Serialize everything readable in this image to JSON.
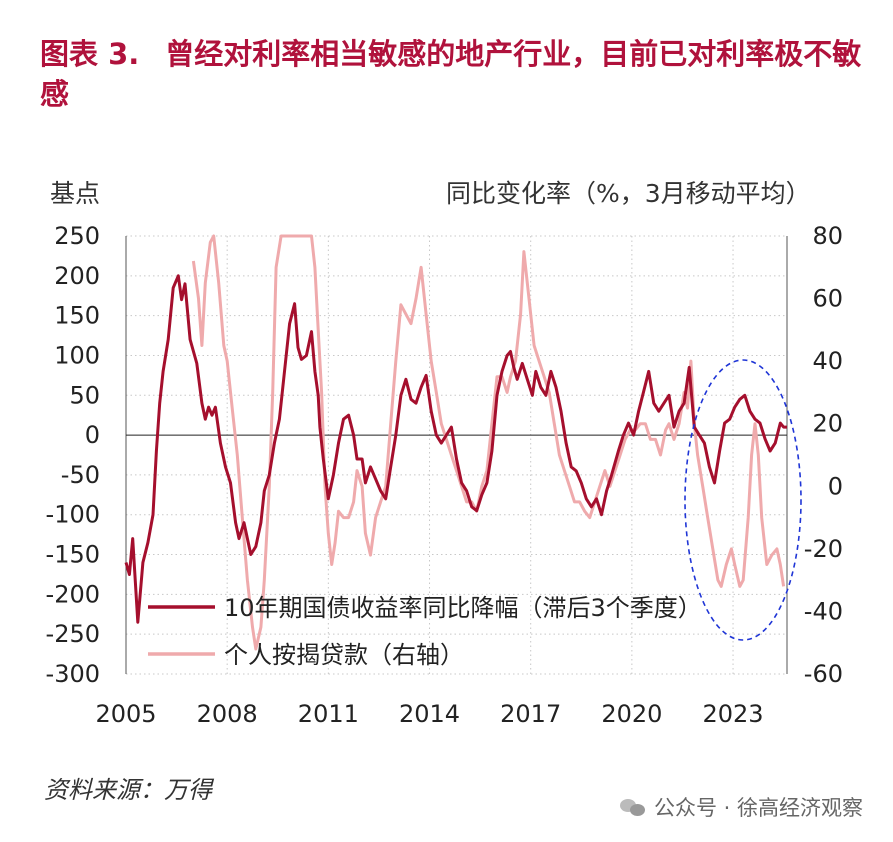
{
  "figure_label": "图表 3.",
  "title": "曾经对利率相当敏感的地产行业，目前已对利率极不敏感",
  "left_unit": "基点",
  "right_unit": "同比变化率（%，3月移动平均）",
  "source": "资料来源：万得",
  "watermark": "公众号 · 徐高经济观察",
  "colors": {
    "bond": "#a50f2d",
    "loan": "#efaaac",
    "circle": "#1f35d6"
  },
  "chart_data": {
    "type": "line",
    "xlim": [
      2005,
      2024.6
    ],
    "x_ticks": [
      "2005",
      "2008",
      "2011",
      "2014",
      "2017",
      "2020",
      "2023"
    ],
    "y_left_lim": [
      -300,
      250
    ],
    "y_left_ticks": [
      "250",
      "200",
      "150",
      "100",
      "50",
      "0",
      "-50",
      "-100",
      "-150",
      "-200",
      "-250",
      "-300"
    ],
    "y_right_lim": [
      -60,
      80
    ],
    "y_right_ticks": [
      "80",
      "60",
      "40",
      "20",
      "0",
      "-20",
      "-40",
      "-60"
    ],
    "grid": true,
    "legend_position": "bottom-center",
    "series": [
      {
        "name": "10年期国债收益率同比降幅（滞后3个季度）",
        "axis": "left",
        "points": [
          [
            2005.0,
            -160
          ],
          [
            2005.1,
            -175
          ],
          [
            2005.2,
            -130
          ],
          [
            2005.35,
            -235
          ],
          [
            2005.5,
            -160
          ],
          [
            2005.65,
            -135
          ],
          [
            2005.8,
            -100
          ],
          [
            2005.9,
            -20
          ],
          [
            2006.0,
            40
          ],
          [
            2006.1,
            80
          ],
          [
            2006.25,
            120
          ],
          [
            2006.4,
            185
          ],
          [
            2006.55,
            200
          ],
          [
            2006.65,
            170
          ],
          [
            2006.75,
            190
          ],
          [
            2006.9,
            120
          ],
          [
            2007.1,
            90
          ],
          [
            2007.25,
            40
          ],
          [
            2007.35,
            20
          ],
          [
            2007.45,
            35
          ],
          [
            2007.55,
            25
          ],
          [
            2007.65,
            35
          ],
          [
            2007.8,
            -10
          ],
          [
            2007.95,
            -40
          ],
          [
            2008.1,
            -60
          ],
          [
            2008.25,
            -110
          ],
          [
            2008.35,
            -130
          ],
          [
            2008.5,
            -110
          ],
          [
            2008.7,
            -150
          ],
          [
            2008.85,
            -140
          ],
          [
            2009.0,
            -110
          ],
          [
            2009.1,
            -70
          ],
          [
            2009.25,
            -50
          ],
          [
            2009.4,
            -10
          ],
          [
            2009.55,
            20
          ],
          [
            2009.7,
            80
          ],
          [
            2009.85,
            140
          ],
          [
            2010.0,
            165
          ],
          [
            2010.1,
            110
          ],
          [
            2010.2,
            95
          ],
          [
            2010.35,
            100
          ],
          [
            2010.5,
            130
          ],
          [
            2010.6,
            80
          ],
          [
            2010.7,
            50
          ],
          [
            2010.75,
            10
          ],
          [
            2010.85,
            -30
          ],
          [
            2011.0,
            -80
          ],
          [
            2011.15,
            -50
          ],
          [
            2011.3,
            -10
          ],
          [
            2011.45,
            20
          ],
          [
            2011.6,
            25
          ],
          [
            2011.75,
            0
          ],
          [
            2011.85,
            -30
          ],
          [
            2012.0,
            -30
          ],
          [
            2012.1,
            -60
          ],
          [
            2012.25,
            -40
          ],
          [
            2012.4,
            -55
          ],
          [
            2012.55,
            -70
          ],
          [
            2012.7,
            -80
          ],
          [
            2012.85,
            -40
          ],
          [
            2013.0,
            0
          ],
          [
            2013.15,
            50
          ],
          [
            2013.3,
            70
          ],
          [
            2013.45,
            45
          ],
          [
            2013.6,
            40
          ],
          [
            2013.75,
            60
          ],
          [
            2013.9,
            75
          ],
          [
            2014.05,
            30
          ],
          [
            2014.2,
            0
          ],
          [
            2014.35,
            -10
          ],
          [
            2014.5,
            0
          ],
          [
            2014.65,
            10
          ],
          [
            2014.8,
            -30
          ],
          [
            2014.95,
            -60
          ],
          [
            2015.1,
            -70
          ],
          [
            2015.25,
            -90
          ],
          [
            2015.4,
            -95
          ],
          [
            2015.55,
            -75
          ],
          [
            2015.7,
            -60
          ],
          [
            2015.85,
            -20
          ],
          [
            2016.0,
            50
          ],
          [
            2016.15,
            80
          ],
          [
            2016.3,
            100
          ],
          [
            2016.4,
            105
          ],
          [
            2016.5,
            85
          ],
          [
            2016.6,
            70
          ],
          [
            2016.75,
            90
          ],
          [
            2016.9,
            70
          ],
          [
            2017.05,
            50
          ],
          [
            2017.15,
            80
          ],
          [
            2017.3,
            60
          ],
          [
            2017.45,
            50
          ],
          [
            2017.6,
            80
          ],
          [
            2017.75,
            60
          ],
          [
            2017.9,
            30
          ],
          [
            2018.05,
            -10
          ],
          [
            2018.2,
            -40
          ],
          [
            2018.35,
            -45
          ],
          [
            2018.5,
            -60
          ],
          [
            2018.65,
            -80
          ],
          [
            2018.8,
            -90
          ],
          [
            2018.95,
            -80
          ],
          [
            2019.1,
            -100
          ],
          [
            2019.25,
            -70
          ],
          [
            2019.4,
            -50
          ],
          [
            2019.6,
            -20
          ],
          [
            2019.75,
            0
          ],
          [
            2019.9,
            15
          ],
          [
            2020.05,
            0
          ],
          [
            2020.2,
            30
          ],
          [
            2020.35,
            55
          ],
          [
            2020.5,
            80
          ],
          [
            2020.65,
            40
          ],
          [
            2020.8,
            30
          ],
          [
            2020.95,
            40
          ],
          [
            2021.1,
            50
          ],
          [
            2021.25,
            10
          ],
          [
            2021.4,
            30
          ],
          [
            2021.55,
            40
          ],
          [
            2021.7,
            85
          ],
          [
            2021.85,
            10
          ],
          [
            2022.0,
            0
          ],
          [
            2022.15,
            -10
          ],
          [
            2022.3,
            -40
          ],
          [
            2022.45,
            -60
          ],
          [
            2022.6,
            -20
          ],
          [
            2022.75,
            15
          ],
          [
            2022.9,
            20
          ],
          [
            2023.05,
            35
          ],
          [
            2023.2,
            45
          ],
          [
            2023.35,
            50
          ],
          [
            2023.5,
            30
          ],
          [
            2023.65,
            20
          ],
          [
            2023.8,
            15
          ],
          [
            2023.95,
            -5
          ],
          [
            2024.1,
            -20
          ],
          [
            2024.25,
            -10
          ],
          [
            2024.4,
            15
          ],
          [
            2024.5,
            10
          ],
          [
            2024.6,
            10
          ]
        ]
      },
      {
        "name": "个人按揭贷款（右轴）",
        "axis": "right",
        "points": [
          [
            2007.0,
            72
          ],
          [
            2007.15,
            60
          ],
          [
            2007.25,
            45
          ],
          [
            2007.35,
            65
          ],
          [
            2007.5,
            78
          ],
          [
            2007.6,
            80
          ],
          [
            2007.75,
            65
          ],
          [
            2007.9,
            45
          ],
          [
            2008.0,
            40
          ],
          [
            2008.15,
            25
          ],
          [
            2008.3,
            10
          ],
          [
            2008.45,
            -10
          ],
          [
            2008.6,
            -30
          ],
          [
            2008.75,
            -45
          ],
          [
            2008.85,
            -52
          ],
          [
            2009.0,
            -45
          ],
          [
            2009.1,
            -30
          ],
          [
            2009.25,
            0
          ],
          [
            2009.35,
            30
          ],
          [
            2009.45,
            70
          ],
          [
            2009.6,
            80
          ],
          [
            2010.5,
            80
          ],
          [
            2010.6,
            70
          ],
          [
            2010.7,
            50
          ],
          [
            2010.8,
            30
          ],
          [
            2010.9,
            0
          ],
          [
            2011.0,
            -15
          ],
          [
            2011.1,
            -25
          ],
          [
            2011.2,
            -18
          ],
          [
            2011.3,
            -8
          ],
          [
            2011.45,
            -10
          ],
          [
            2011.6,
            -10
          ],
          [
            2011.75,
            -5
          ],
          [
            2011.85,
            5
          ],
          [
            2012.0,
            0
          ],
          [
            2012.1,
            -15
          ],
          [
            2012.25,
            -22
          ],
          [
            2012.4,
            -10
          ],
          [
            2012.55,
            -5
          ],
          [
            2012.7,
            0
          ],
          [
            2012.85,
            20
          ],
          [
            2013.0,
            40
          ],
          [
            2013.15,
            58
          ],
          [
            2013.3,
            55
          ],
          [
            2013.45,
            52
          ],
          [
            2013.6,
            60
          ],
          [
            2013.75,
            70
          ],
          [
            2013.9,
            55
          ],
          [
            2014.05,
            40
          ],
          [
            2014.2,
            30
          ],
          [
            2014.35,
            20
          ],
          [
            2014.5,
            15
          ],
          [
            2014.65,
            10
          ],
          [
            2014.8,
            5
          ],
          [
            2014.95,
            0
          ],
          [
            2015.1,
            -5
          ],
          [
            2015.25,
            -5
          ],
          [
            2015.4,
            -8
          ],
          [
            2015.55,
            0
          ],
          [
            2015.7,
            5
          ],
          [
            2015.85,
            20
          ],
          [
            2016.0,
            35
          ],
          [
            2016.15,
            35
          ],
          [
            2016.3,
            30
          ],
          [
            2016.4,
            35
          ],
          [
            2016.55,
            40
          ],
          [
            2016.7,
            55
          ],
          [
            2016.8,
            75
          ],
          [
            2016.95,
            60
          ],
          [
            2017.1,
            45
          ],
          [
            2017.25,
            40
          ],
          [
            2017.4,
            35
          ],
          [
            2017.55,
            30
          ],
          [
            2017.7,
            20
          ],
          [
            2017.85,
            10
          ],
          [
            2018.0,
            5
          ],
          [
            2018.15,
            0
          ],
          [
            2018.3,
            -5
          ],
          [
            2018.45,
            -5
          ],
          [
            2018.6,
            -8
          ],
          [
            2018.75,
            -10
          ],
          [
            2018.9,
            -5
          ],
          [
            2019.05,
            0
          ],
          [
            2019.2,
            5
          ],
          [
            2019.35,
            0
          ],
          [
            2019.5,
            5
          ],
          [
            2019.65,
            10
          ],
          [
            2019.8,
            15
          ],
          [
            2019.95,
            18
          ],
          [
            2020.1,
            18
          ],
          [
            2020.25,
            20
          ],
          [
            2020.4,
            20
          ],
          [
            2020.55,
            15
          ],
          [
            2020.7,
            15
          ],
          [
            2020.85,
            10
          ],
          [
            2021.0,
            18
          ],
          [
            2021.1,
            20
          ],
          [
            2021.25,
            15
          ],
          [
            2021.4,
            20
          ],
          [
            2021.55,
            30
          ],
          [
            2021.65,
            25
          ],
          [
            2021.75,
            40
          ],
          [
            2021.85,
            20
          ],
          [
            2021.95,
            10
          ],
          [
            2022.1,
            0
          ],
          [
            2022.25,
            -10
          ],
          [
            2022.4,
            -20
          ],
          [
            2022.55,
            -30
          ],
          [
            2022.65,
            -32
          ],
          [
            2022.8,
            -25
          ],
          [
            2022.95,
            -20
          ],
          [
            2023.05,
            -25
          ],
          [
            2023.2,
            -32
          ],
          [
            2023.3,
            -30
          ],
          [
            2023.45,
            -10
          ],
          [
            2023.55,
            10
          ],
          [
            2023.65,
            20
          ],
          [
            2023.75,
            10
          ],
          [
            2023.85,
            -10
          ],
          [
            2024.0,
            -25
          ],
          [
            2024.15,
            -22
          ],
          [
            2024.3,
            -20
          ],
          [
            2024.4,
            -25
          ],
          [
            2024.5,
            -32
          ]
        ]
      }
    ]
  }
}
